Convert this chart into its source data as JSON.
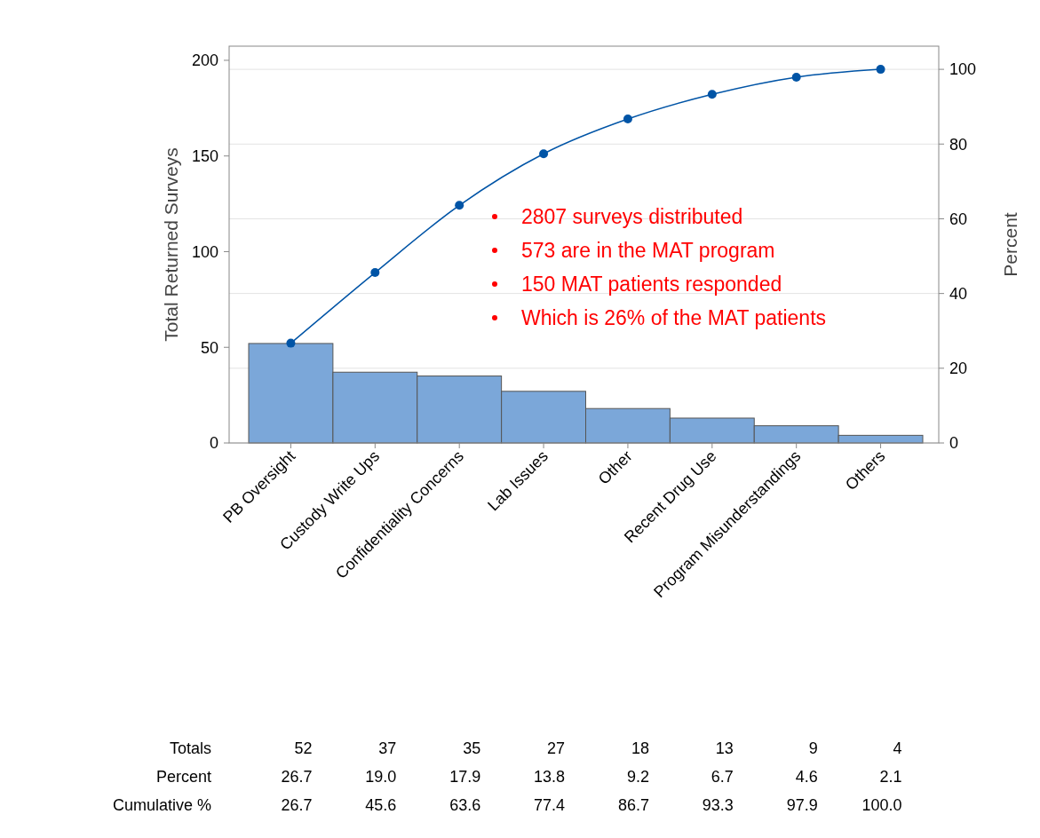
{
  "chart_data": {
    "type": "bar",
    "ylabel": "Total Returned Surveys",
    "y2label": "Percent",
    "categories": [
      "PB Oversight",
      "Custody Write Ups",
      "Confidentiality Concerns",
      "Lab Issues",
      "Other",
      "Recent Drug Use",
      "Program Misunderstandings",
      "Others"
    ],
    "series": [
      {
        "color": "#7ba7d9",
        "values": [
          52,
          37,
          35,
          27,
          18,
          13,
          9,
          4
        ]
      },
      {
        "type": "line",
        "axis": "y2",
        "color": "#0054a6",
        "values": [
          26.7,
          45.6,
          63.6,
          77.4,
          86.7,
          93.3,
          97.9,
          100.0
        ]
      }
    ],
    "ylim": [
      0,
      207.4
    ],
    "yticks": [
      0,
      50,
      100,
      150,
      200
    ],
    "y2lim": [
      0,
      106.2
    ],
    "y2ticks": [
      0,
      20,
      40,
      60,
      80,
      100
    ],
    "grid": "y2",
    "marker": "circle",
    "line_style": "solid",
    "annotations": [
      "2807 surveys distributed",
      "573 are in the MAT program",
      "150 MAT patients responded",
      "Which is 26% of the MAT patients",
      "Totals",
      "Percent",
      "Cumulative %",
      "52",
      "37",
      "35",
      "27",
      "18",
      "13",
      "9",
      "4",
      "26.7",
      "19.0",
      "17.9",
      "13.8",
      "9.2",
      "6.7",
      "4.6",
      "2.1",
      "26.7",
      "45.6",
      "63.6",
      "77.4",
      "86.7",
      "93.3",
      "97.9",
      "100.0"
    ]
  }
}
